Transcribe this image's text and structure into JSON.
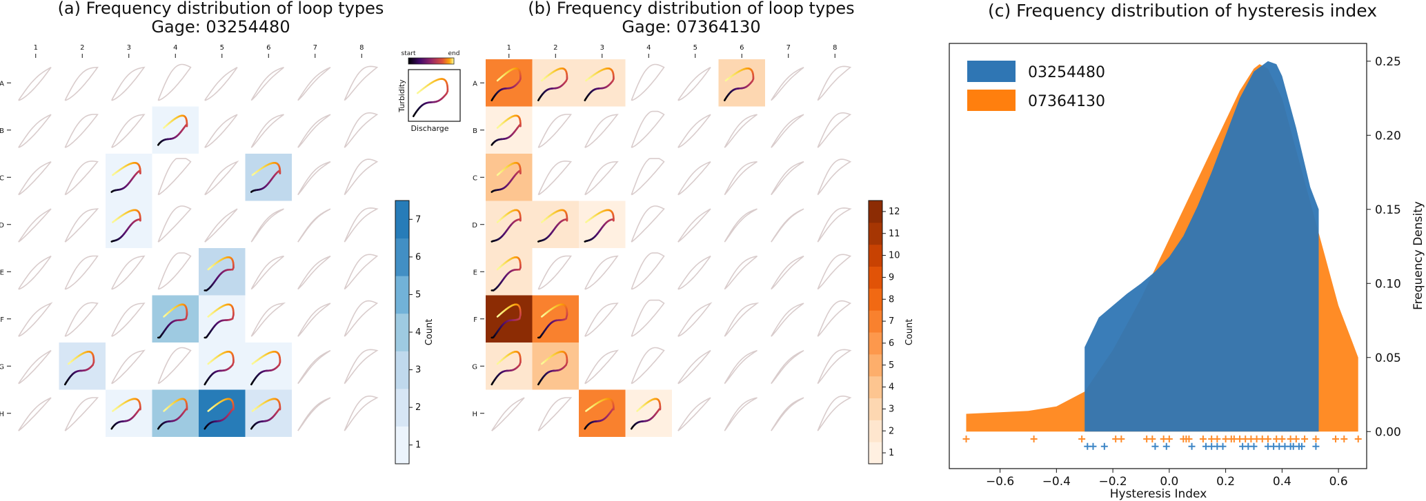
{
  "panels": {
    "a": {
      "title_line1": "(a) Frequency distribution of loop types",
      "title_line2": "Gage: 03254480",
      "colorbar_label": "Count",
      "colorbar_ticks": [
        "1",
        "2",
        "3",
        "4",
        "5",
        "6",
        "7"
      ]
    },
    "b": {
      "title_line1": "(b) Frequency distribution of loop types",
      "title_line2": "Gage: 07364130",
      "colorbar_label": "Count",
      "colorbar_ticks": [
        "1",
        "2",
        "3",
        "4",
        "5",
        "6",
        "7",
        "8",
        "9",
        "10",
        "11",
        "12"
      ]
    },
    "c": {
      "title": "(c) Frequency distribution of hysteresis index"
    }
  },
  "legend_inset": {
    "start_label": "start",
    "end_label": "end",
    "y_label": "Turbidity",
    "x_label": "Discharge"
  },
  "colors": {
    "blue_series": "#2f76b4",
    "orange_series": "#ff7f0e",
    "blue_cmap_high": "#1f77b4",
    "orange_cmap_high": "#7f2704"
  },
  "chart_data": [
    {
      "type": "heatmap",
      "title": "(a) Frequency distribution of loop types\nGage: 03254480",
      "column_labels": [
        "1",
        "2",
        "3",
        "4",
        "5",
        "6",
        "7",
        "8"
      ],
      "row_labels": [
        "A",
        "B",
        "C",
        "D",
        "E",
        "F",
        "G",
        "H"
      ],
      "colorbar": {
        "label": "Count",
        "range": [
          0.5,
          7.5
        ],
        "colormap": "Blues"
      },
      "counts": [
        [
          0,
          0,
          0,
          0,
          0,
          0,
          0,
          0
        ],
        [
          0,
          0,
          0,
          1,
          0,
          0,
          0,
          0
        ],
        [
          0,
          0,
          1,
          0,
          0,
          3,
          0,
          0
        ],
        [
          0,
          0,
          1,
          0,
          0,
          0,
          0,
          0
        ],
        [
          0,
          0,
          0,
          0,
          3,
          0,
          0,
          0
        ],
        [
          0,
          0,
          0,
          4,
          1,
          0,
          0,
          0
        ],
        [
          0,
          2,
          0,
          0,
          1,
          1,
          0,
          0
        ],
        [
          0,
          0,
          1,
          4,
          7,
          2,
          0,
          0
        ]
      ]
    },
    {
      "type": "heatmap",
      "title": "(b) Frequency distribution of loop types\nGage: 07364130",
      "column_labels": [
        "1",
        "2",
        "3",
        "4",
        "5",
        "6",
        "7",
        "8"
      ],
      "row_labels": [
        "A",
        "B",
        "C",
        "D",
        "E",
        "F",
        "G",
        "H"
      ],
      "colorbar": {
        "label": "Count",
        "range": [
          0.5,
          12.5
        ],
        "colormap": "Oranges"
      },
      "counts": [
        [
          7,
          2,
          2,
          0,
          0,
          3,
          0,
          0
        ],
        [
          1,
          0,
          0,
          0,
          0,
          0,
          0,
          0
        ],
        [
          4,
          0,
          0,
          0,
          0,
          0,
          0,
          0
        ],
        [
          2,
          2,
          1,
          0,
          0,
          0,
          0,
          0
        ],
        [
          2,
          0,
          0,
          0,
          0,
          0,
          0,
          0
        ],
        [
          12,
          7,
          0,
          0,
          0,
          0,
          0,
          0
        ],
        [
          2,
          4,
          0,
          0,
          0,
          0,
          0,
          0
        ],
        [
          0,
          0,
          7,
          1,
          0,
          0,
          0,
          0
        ]
      ]
    },
    {
      "type": "area",
      "title": "(c) Frequency distribution of hysteresis index",
      "xlabel": "Hysteresis Index",
      "ylabel": "Frequency Density",
      "xlim": [
        -0.78,
        0.7
      ],
      "ylim": [
        -0.025,
        0.262
      ],
      "x_ticks": [
        "−0.6",
        "−0.4",
        "−0.2",
        "0.0",
        "0.2",
        "0.4",
        "0.6"
      ],
      "x_tick_values": [
        -0.6,
        -0.4,
        -0.2,
        0.0,
        0.2,
        0.4,
        0.6
      ],
      "y_ticks": [
        "0.00",
        "0.05",
        "0.10",
        "0.15",
        "0.20",
        "0.25"
      ],
      "y_tick_values": [
        0.0,
        0.05,
        0.1,
        0.15,
        0.2,
        0.25
      ],
      "legend_position": "top-left",
      "series": [
        {
          "name": "07364130",
          "x": [
            -0.72,
            -0.6,
            -0.5,
            -0.4,
            -0.3,
            -0.2,
            -0.1,
            0.0,
            0.1,
            0.2,
            0.25,
            0.3,
            0.32,
            0.35,
            0.4,
            0.45,
            0.5,
            0.55,
            0.6,
            0.65,
            0.67
          ],
          "density": [
            0.012,
            0.013,
            0.014,
            0.017,
            0.027,
            0.055,
            0.09,
            0.13,
            0.17,
            0.21,
            0.23,
            0.245,
            0.248,
            0.245,
            0.225,
            0.19,
            0.155,
            0.12,
            0.085,
            0.06,
            0.05
          ],
          "rug_y": -0.005,
          "rug_x": [
            -0.72,
            -0.48,
            -0.31,
            -0.19,
            -0.17,
            -0.08,
            -0.06,
            -0.02,
            0.0,
            0.05,
            0.06,
            0.07,
            0.12,
            0.15,
            0.17,
            0.2,
            0.22,
            0.23,
            0.25,
            0.27,
            0.29,
            0.31,
            0.33,
            0.35,
            0.38,
            0.4,
            0.43,
            0.45,
            0.48,
            0.52,
            0.59,
            0.62,
            0.67
          ]
        },
        {
          "name": "03254480",
          "x": [
            -0.3,
            -0.25,
            -0.2,
            -0.15,
            -0.1,
            -0.05,
            0.0,
            0.05,
            0.1,
            0.15,
            0.2,
            0.25,
            0.3,
            0.35,
            0.38,
            0.4,
            0.45,
            0.5,
            0.53
          ],
          "density": [
            0.057,
            0.077,
            0.085,
            0.093,
            0.1,
            0.108,
            0.118,
            0.132,
            0.152,
            0.175,
            0.2,
            0.225,
            0.243,
            0.25,
            0.248,
            0.24,
            0.205,
            0.165,
            0.15
          ],
          "rug_y": -0.01,
          "rug_x": [
            -0.29,
            -0.27,
            -0.23,
            -0.05,
            -0.01,
            0.08,
            0.13,
            0.15,
            0.17,
            0.19,
            0.26,
            0.28,
            0.3,
            0.35,
            0.37,
            0.39,
            0.41,
            0.43,
            0.44,
            0.46,
            0.47,
            0.52
          ]
        }
      ]
    }
  ]
}
